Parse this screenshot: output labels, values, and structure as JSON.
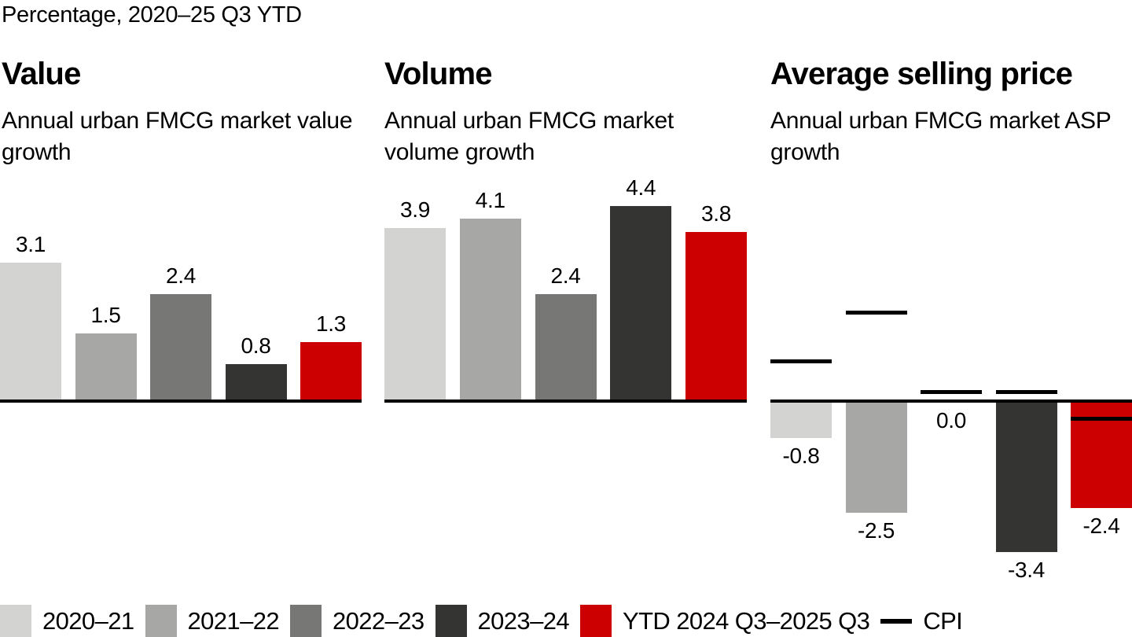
{
  "header": {
    "kicker": "Percentage, 2020–25 Q3 YTD"
  },
  "palette": {
    "series": [
      "#d3d3d1",
      "#a7a7a5",
      "#777775",
      "#343433",
      "#cc0000"
    ],
    "cpi": "#000000",
    "axis": "#000000",
    "text": "#000000"
  },
  "legend": {
    "items": [
      "2020–21",
      "2021–22",
      "2022–23",
      "2023–24",
      "YTD 2024 Q3–2025 Q3"
    ],
    "cpi_label": "CPI"
  },
  "chart_data": [
    {
      "type": "bar",
      "title": "Value",
      "subtitle": "Annual urban FMCG market value growth",
      "categories": [
        "2020–21",
        "2021–22",
        "2022–23",
        "2023–24",
        "YTD 2024 Q3–2025 Q3"
      ],
      "values": [
        3.1,
        1.5,
        2.4,
        0.8,
        1.3
      ],
      "data_labels": [
        "3.1",
        "1.5",
        "2.4",
        "0.8",
        "1.3"
      ],
      "unit": "percent",
      "baseline": 0,
      "grid": false,
      "axis_labels": false
    },
    {
      "type": "bar",
      "title": "Volume",
      "subtitle": "Annual urban FMCG market volume growth",
      "categories": [
        "2020–21",
        "2021–22",
        "2022–23",
        "2023–24",
        "YTD 2024 Q3–2025 Q3"
      ],
      "values": [
        3.9,
        4.1,
        2.4,
        4.4,
        3.8
      ],
      "data_labels": [
        "3.9",
        "4.1",
        "2.4",
        "4.4",
        "3.8"
      ],
      "unit": "percent",
      "baseline": 0,
      "grid": false,
      "axis_labels": false
    },
    {
      "type": "bar",
      "title": "Average selling price",
      "subtitle": "Annual urban FMCG market ASP growth",
      "categories": [
        "2020–21",
        "2021–22",
        "2022–23",
        "2023–24",
        "YTD 2024 Q3–2025 Q3"
      ],
      "values": [
        -0.8,
        -2.5,
        0.0,
        -3.4,
        -2.4
      ],
      "data_labels": [
        "-0.8",
        "-2.5",
        "0.0",
        "-3.4",
        "-2.4"
      ],
      "cpi_series": {
        "name": "CPI",
        "values_estimated": [
          0.9,
          2.0,
          0.2,
          0.2,
          -0.4
        ]
      },
      "unit": "percent",
      "baseline": 0,
      "grid": false,
      "axis_labels": false
    }
  ]
}
